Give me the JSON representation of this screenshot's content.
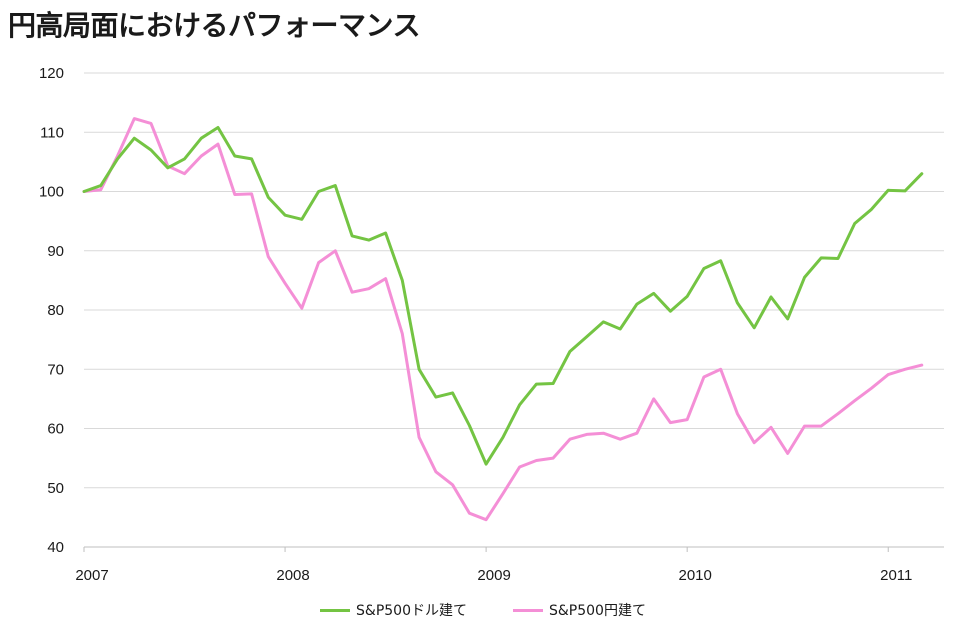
{
  "title": "円高局面におけるパフォーマンス",
  "colors": {
    "usd": "#74c443",
    "jpy": "#f48fd6",
    "grid": "#d9d9d9"
  },
  "chart_data": {
    "type": "line",
    "title": "円高局面におけるパフォーマンス",
    "xlabel": "",
    "ylabel": "",
    "ylim": [
      40,
      120
    ],
    "y_ticks": [
      40,
      50,
      60,
      70,
      80,
      90,
      100,
      110,
      120
    ],
    "x_ticks": [
      "2007",
      "2008",
      "2009",
      "2010",
      "2011"
    ],
    "grid": true,
    "legend_position": "bottom",
    "x": [
      "2007-01",
      "2007-02",
      "2007-03",
      "2007-04",
      "2007-05",
      "2007-06",
      "2007-07",
      "2007-08",
      "2007-09",
      "2007-10",
      "2007-11",
      "2007-12",
      "2008-01",
      "2008-02",
      "2008-03",
      "2008-04",
      "2008-05",
      "2008-06",
      "2008-07",
      "2008-08",
      "2008-09",
      "2008-10",
      "2008-11",
      "2008-12",
      "2009-01",
      "2009-02",
      "2009-03",
      "2009-04",
      "2009-05",
      "2009-06",
      "2009-07",
      "2009-08",
      "2009-09",
      "2009-10",
      "2009-11",
      "2009-12",
      "2010-01",
      "2010-02",
      "2010-03",
      "2010-04",
      "2010-05",
      "2010-06",
      "2010-07",
      "2010-08",
      "2010-09",
      "2010-10",
      "2010-11",
      "2010-12",
      "2011-01",
      "2011-02",
      "2011-03"
    ],
    "series": [
      {
        "name": "S&P500ドル建て",
        "values": [
          100,
          101,
          105.5,
          109,
          107,
          104,
          105.5,
          109,
          110.8,
          106,
          105.5,
          99,
          96,
          95.3,
          100,
          101,
          92.5,
          91.8,
          93,
          85,
          70,
          65.3,
          66,
          60.5,
          54,
          58.5,
          64,
          67.5,
          67.6,
          73,
          75.5,
          78,
          76.8,
          81,
          82.8,
          79.8,
          82.3,
          87,
          88.3,
          81.2,
          77,
          82.2,
          78.5,
          85.5,
          88.8,
          88.7,
          94.6,
          97,
          100.2,
          100.1,
          103
        ]
      },
      {
        "name": "S&P500円建て",
        "values": [
          100,
          100.3,
          106,
          112.3,
          111.5,
          104.3,
          103,
          106,
          108,
          99.5,
          99.6,
          89,
          84.5,
          80.3,
          88,
          90,
          83,
          83.6,
          85.3,
          76,
          58.5,
          52.7,
          50.5,
          45.7,
          44.6,
          49,
          53.5,
          54.6,
          55,
          58.2,
          59,
          59.2,
          58.2,
          59.2,
          65,
          61,
          61.5,
          68.7,
          70,
          62.5,
          57.6,
          60.2,
          55.8,
          60.4,
          60.4,
          62.5,
          64.7,
          66.8,
          69.1,
          70,
          70.7
        ]
      }
    ]
  }
}
